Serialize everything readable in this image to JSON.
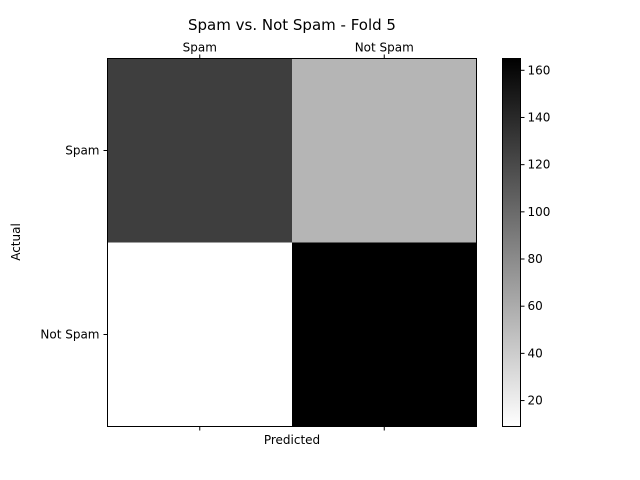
{
  "chart_data": {
    "type": "heatmap",
    "title": "Spam vs. Not Spam - Fold 5",
    "xlabel": "Predicted",
    "ylabel": "Actual",
    "x_categories": [
      "Spam",
      "Not Spam"
    ],
    "y_categories": [
      "Spam",
      "Not Spam"
    ],
    "values": [
      [
        127,
        54
      ],
      [
        9,
        165
      ]
    ],
    "colormap": "gray_r",
    "color_range": [
      9,
      165
    ],
    "colorbar_ticks": [
      20,
      40,
      60,
      80,
      100,
      120,
      140,
      160
    ],
    "grid": false,
    "x_tick_position": "top"
  }
}
